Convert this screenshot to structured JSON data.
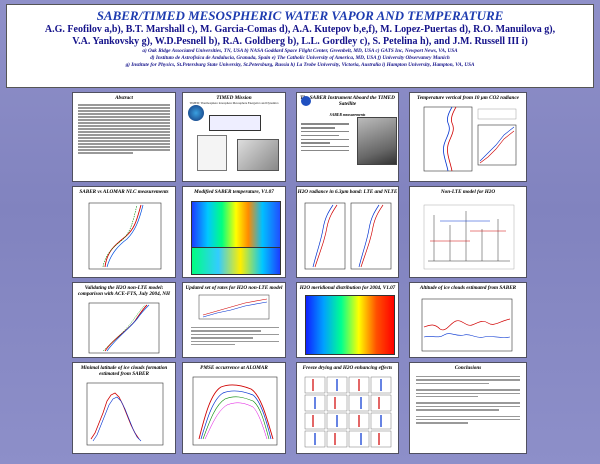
{
  "header": {
    "title": "SABER/TIMED MESOSPHERIC WATER VAPOR AND TEMPERATURE",
    "authors_line1": "A.G. Feofilov a,b), B.T. Marshall c), M. Garcia-Comas d), A.A. Kutepov b,e,f), M. Lopez-Puertas d), R.O. Manuilova g),",
    "authors_line2": "V.A. Yankovsky g), W.D.Pesnell b), R.A. Goldberg b), L.L. Gordley c), S. Petelina h), and J.M. Russell III i)",
    "affil_line1": "a) Oak Ridge Associated Universities, TN, USA b) NASA Goddard Space Flight Center, Greenbelt, MD, USA c) GATS Inc, Newport News, VA, USA",
    "affil_line2": "d) Instituto de Astrofisica de Andalucia, Granada, Spain e) The Catholic University of America, MD, USA f) University Observatory Munich",
    "affil_line3": "g) Institute for Physics, St.Petersburg State University, St.Petersburg, Russia h) La Trobe University, Victoria, Australia i) Hampton University, Hampton, VA, USA"
  },
  "panels": {
    "abstract": {
      "title": "Abstract"
    },
    "timed": {
      "title": "TIMED Mission",
      "caption": "TIMED: Thermosphere Ionosphere Mesosphere Energetics and Dynamics"
    },
    "saber_instr": {
      "title": "The SABER Instrument Aboard the TIMED Satellite",
      "subtitle": "SABER measurements"
    },
    "temp_vertical": {
      "title": "Temperature vertical from 10 µm CO2 radiance"
    },
    "saber_aldomar": {
      "title": "SABER vs ALOMAR NLC measurements"
    },
    "modified_temp": {
      "title": "Modified SABER temperature, V1.07"
    },
    "h2o_radiance": {
      "title": "H2O radiance in 6.3µm band: LTE and NLTE"
    },
    "nlte_model": {
      "title": "Non-LTE model for H2O"
    },
    "validating": {
      "title": "Validating the H2O non-LTE model: comparison with ACE-FTS, July 2004, NH"
    },
    "rate_factors": {
      "title": "Updated set of rates for H2O non-LTE model"
    },
    "meridional": {
      "title": "H2O meridional distribution for 2004, V1.07"
    },
    "altitude_clouds": {
      "title": "Altitude of ice clouds estimated from SABER"
    },
    "minimal_latitude": {
      "title": "Minimal latitude of ice clouds formation estimated from SABER"
    },
    "pmse": {
      "title": "PMSE occurrence at ALOMAR"
    },
    "freeze_drying": {
      "title": "Freeze drying and H2O enhancing effects"
    },
    "conclusions": {
      "title": "Conclusions"
    }
  },
  "colors": {
    "background": "#8f90c9",
    "title": "#1e3cb0",
    "authors": "#14128a"
  }
}
